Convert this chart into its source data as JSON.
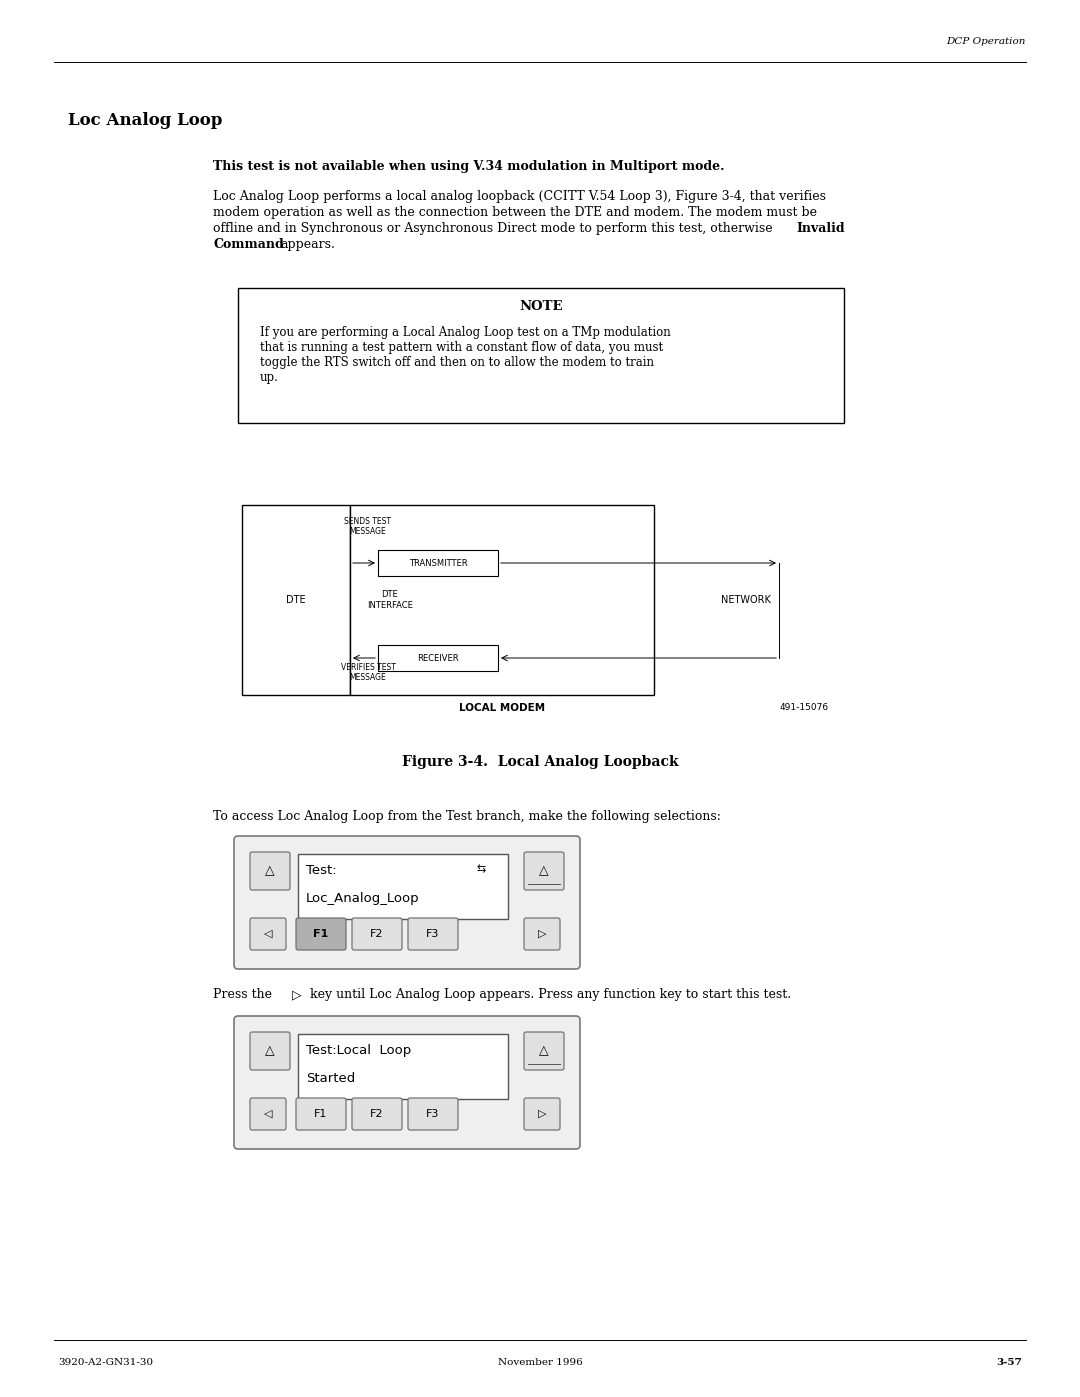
{
  "page_width": 10.8,
  "page_height": 13.97,
  "bg_color": "#ffffff",
  "header_text": "DCP Operation",
  "footer_left": "3920-A2-GN31-30",
  "footer_center": "November 1996",
  "footer_right": "3-57",
  "section_title": "Loc Analog Loop",
  "bold_line": "This test is not available when using V.34 modulation in Multiport mode.",
  "note_title": "NOTE",
  "note_body_line1": "If you are performing a Local Analog Loop test on a TMp modulation",
  "note_body_line2": "that is running a test pattern with a constant flow of data, you must",
  "note_body_line3": "toggle the RTS switch off and then on to allow the modem to train",
  "note_body_line4": "up.",
  "fig_caption": "Figure 3-4.  Local Analog Loopback",
  "fig_label": "491-15076",
  "access_text": "To access Loc Analog Loop from the Test branch, make the following selections:",
  "lcd1_line1": "Test:",
  "lcd1_arrow": "⇆",
  "lcd1_line2": "Loc_Analog_Loop",
  "press_text1": "Press the",
  "press_arrow": "▷",
  "press_text2": "key until Loc Analog Loop appears. Press any function key to start this test.",
  "lcd2_line1": "Test:Local  Loop",
  "lcd2_line2": "Started"
}
